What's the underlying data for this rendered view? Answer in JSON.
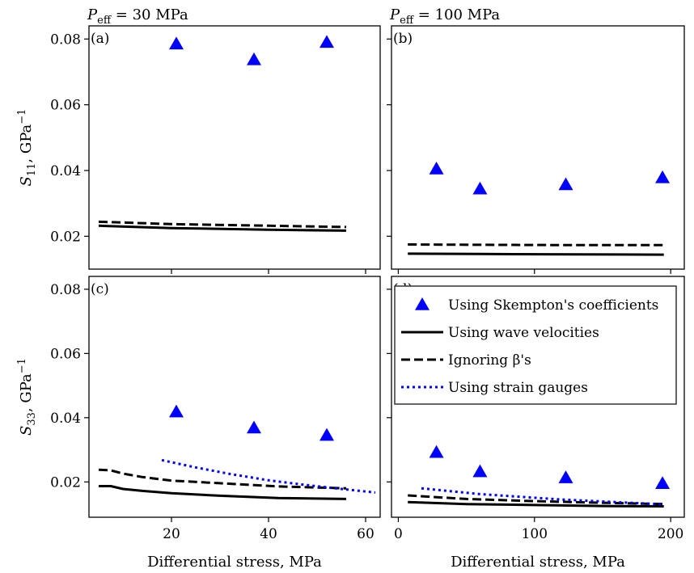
{
  "chart_data": {
    "type": "scatter",
    "legend": {
      "placement": "inside panel (d), upper right",
      "entries": [
        {
          "label": "Using Skempton's coefficients",
          "style": "triangle",
          "color": "#0000ff"
        },
        {
          "label": "Using wave velocities",
          "style": "solid",
          "color": "#000000"
        },
        {
          "label": "Ignoring β's",
          "style": "dashed",
          "color": "#000000"
        },
        {
          "label": "Using strain gauges",
          "style": "dotted",
          "color": "#0000ff"
        }
      ]
    },
    "columns": [
      {
        "title": "P",
        "title_sub": "eff",
        "title_rest": " = 30 MPa",
        "xlabel": "Differential stress, MPa",
        "xticks": [
          20,
          40,
          60
        ],
        "xlim": [
          3,
          63
        ]
      },
      {
        "title": "P",
        "title_sub": "eff",
        "title_rest": " = 100 MPa",
        "xlabel": "Differential stress, MPa",
        "xticks": [
          0,
          100,
          200
        ],
        "xlim": [
          -5,
          210
        ]
      }
    ],
    "rows": [
      {
        "ylabel": "S",
        "ylabel_sub": "11",
        "ylabel_rest": ", GPa",
        "ylabel_sup": "−1",
        "yticks": [
          0.02,
          0.04,
          0.06,
          0.08
        ],
        "ylim": [
          0.01,
          0.084
        ]
      },
      {
        "ylabel": "S",
        "ylabel_sub": "33",
        "ylabel_rest": ", GPa",
        "ylabel_sup": "−1",
        "yticks": [
          0.02,
          0.04,
          0.06,
          0.08
        ],
        "ylim": [
          0.009,
          0.084
        ]
      }
    ],
    "panels": [
      {
        "label": "(a)",
        "row": 0,
        "col": 0,
        "skempton": {
          "x": [
            21,
            37,
            52
          ],
          "y": [
            0.0785,
            0.0737,
            0.079
          ]
        },
        "wave": {
          "x": [
            5,
            20,
            40,
            56
          ],
          "y": [
            0.0232,
            0.0225,
            0.022,
            0.0217
          ]
        },
        "ignoring": {
          "x": [
            5,
            20,
            40,
            56
          ],
          "y": [
            0.0244,
            0.0237,
            0.0232,
            0.0228
          ]
        },
        "gauges": null
      },
      {
        "label": "(b)",
        "row": 0,
        "col": 1,
        "skempton": {
          "x": [
            28,
            60,
            123,
            194
          ],
          "y": [
            0.0405,
            0.0344,
            0.0357,
            0.0378
          ]
        },
        "wave": {
          "x": [
            7,
            60,
            130,
            195
          ],
          "y": [
            0.0147,
            0.0146,
            0.0145,
            0.0144
          ]
        },
        "ignoring": {
          "x": [
            7,
            60,
            130,
            195
          ],
          "y": [
            0.0175,
            0.0174,
            0.0173,
            0.0173
          ]
        },
        "gauges": null
      },
      {
        "label": "(c)",
        "row": 1,
        "col": 0,
        "skempton": {
          "x": [
            21,
            37,
            52
          ],
          "y": [
            0.0418,
            0.0368,
            0.0345
          ]
        },
        "wave": {
          "x": [
            5,
            7.5,
            10,
            14,
            20,
            30,
            42,
            56
          ],
          "y": [
            0.0187,
            0.0187,
            0.0178,
            0.0172,
            0.0165,
            0.0157,
            0.015,
            0.0147
          ]
        },
        "ignoring": {
          "x": [
            5,
            7.5,
            10,
            14,
            20,
            30,
            42,
            56
          ],
          "y": [
            0.0238,
            0.0236,
            0.0226,
            0.0215,
            0.0204,
            0.0196,
            0.0186,
            0.018
          ]
        },
        "gauges": {
          "x": [
            18,
            25,
            32,
            40,
            48,
            55,
            62
          ],
          "y": [
            0.0268,
            0.0245,
            0.0225,
            0.0205,
            0.019,
            0.0178,
            0.0167
          ]
        }
      },
      {
        "label": "(d)",
        "row": 1,
        "col": 1,
        "skempton": {
          "x": [
            28,
            60,
            123,
            194
          ],
          "y": [
            0.0292,
            0.0232,
            0.0213,
            0.0195
          ]
        },
        "wave": {
          "x": [
            7,
            50,
            100,
            150,
            195
          ],
          "y": [
            0.0137,
            0.0131,
            0.0128,
            0.0125,
            0.0124
          ]
        },
        "ignoring": {
          "x": [
            7,
            50,
            100,
            150,
            195
          ],
          "y": [
            0.0158,
            0.0147,
            0.014,
            0.0135,
            0.0131
          ]
        },
        "gauges": {
          "x": [
            17,
            60,
            120,
            195
          ],
          "y": [
            0.018,
            0.0162,
            0.0145,
            0.013
          ]
        }
      }
    ]
  }
}
